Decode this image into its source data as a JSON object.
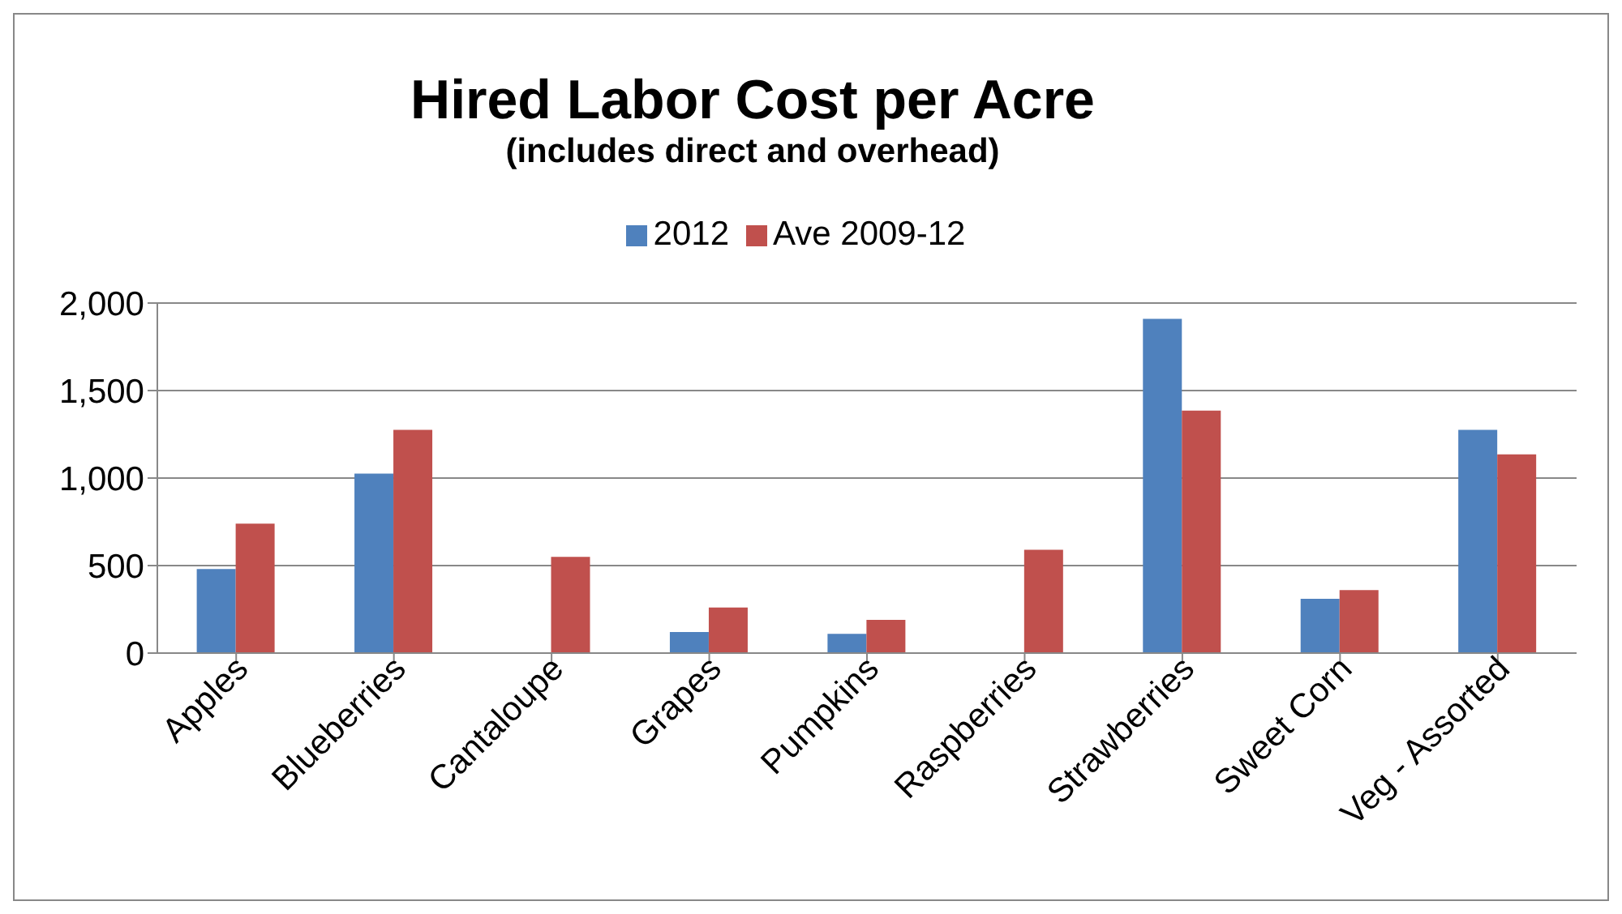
{
  "chart_data": {
    "type": "bar",
    "title": "Hired Labor Cost per Acre",
    "subtitle": "(includes direct and overhead)",
    "categories": [
      "Apples",
      "Blueberries",
      "Cantaloupe",
      "Grapes",
      "Pumpkins",
      "Raspberries",
      "Strawberries",
      "Sweet Corn",
      "Veg - Assorted"
    ],
    "series": [
      {
        "name": "2012",
        "color": "#4f81bd",
        "values": [
          480,
          1025,
          null,
          120,
          110,
          null,
          1910,
          310,
          1275
        ]
      },
      {
        "name": "Ave 2009-12",
        "color": "#c0504d",
        "values": [
          740,
          1275,
          550,
          260,
          190,
          590,
          1385,
          360,
          1135
        ]
      }
    ],
    "ylim": [
      0,
      2000
    ],
    "yticks": [
      0,
      {
        "value": 500,
        "label": "500"
      },
      {
        "value": 1000,
        "label": "1,000"
      },
      {
        "value": 1500,
        "label": "1,500"
      },
      {
        "value": 2000,
        "label": "2,000"
      }
    ],
    "grid": "y",
    "legend": "top"
  }
}
